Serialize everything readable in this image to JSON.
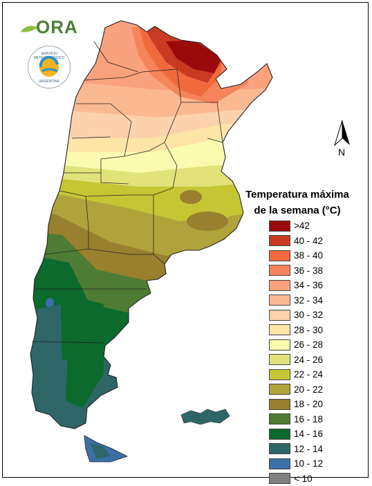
{
  "header": {
    "logo_text": "ORA",
    "seal_top_text": "SERVICIO METEOROLÓGICO NACIONAL",
    "seal_bottom_text": "ARGENTINA"
  },
  "north_arrow": {
    "label": "N",
    "icon": "north-arrow-icon"
  },
  "legend": {
    "title_line1": "Temperatura máxima",
    "title_line2": "de la semana (°C)",
    "items": [
      {
        "label": ">42",
        "color": "#9b0a0a"
      },
      {
        "label": "40 - 42",
        "color": "#c93a23"
      },
      {
        "label": "38 - 40",
        "color": "#f06a3d"
      },
      {
        "label": "36 - 38",
        "color": "#f7845a"
      },
      {
        "label": "34 - 36",
        "color": "#f9a27d"
      },
      {
        "label": "32 - 34",
        "color": "#fbb992"
      },
      {
        "label": "30 - 32",
        "color": "#fcd2ac"
      },
      {
        "label": "28 - 30",
        "color": "#fde5a8"
      },
      {
        "label": "26 - 28",
        "color": "#fbfbb0"
      },
      {
        "label": "24 - 26",
        "color": "#e2e27a"
      },
      {
        "label": "22 - 24",
        "color": "#c6c634"
      },
      {
        "label": "20 - 22",
        "color": "#b0a33c"
      },
      {
        "label": "18 - 20",
        "color": "#98802f"
      },
      {
        "label": "16 - 18",
        "color": "#4e7c34"
      },
      {
        "label": "14 - 16",
        "color": "#0b6a2c"
      },
      {
        "label": "12 - 14",
        "color": "#2e6668"
      },
      {
        "label": "10 - 12",
        "color": "#3b6fa8"
      },
      {
        "label": "< 10",
        "color": "#808080"
      }
    ]
  }
}
